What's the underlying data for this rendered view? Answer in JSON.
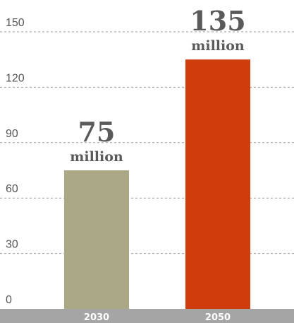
{
  "chart_data": {
    "type": "bar",
    "categories": [
      "2030",
      "2050"
    ],
    "values": [
      75,
      135
    ],
    "data_labels": [
      {
        "number": "75",
        "unit": "million"
      },
      {
        "number": "135",
        "unit": "million"
      }
    ],
    "colors": [
      "#aba886",
      "#cf3d0d"
    ],
    "axis_bar_color": "#a5a5a5",
    "yticks": [
      "0",
      "30",
      "60",
      "90",
      "120",
      "150"
    ],
    "ylim": [
      0,
      150
    ],
    "grid": true,
    "title": "",
    "xlabel": "",
    "ylabel": ""
  }
}
